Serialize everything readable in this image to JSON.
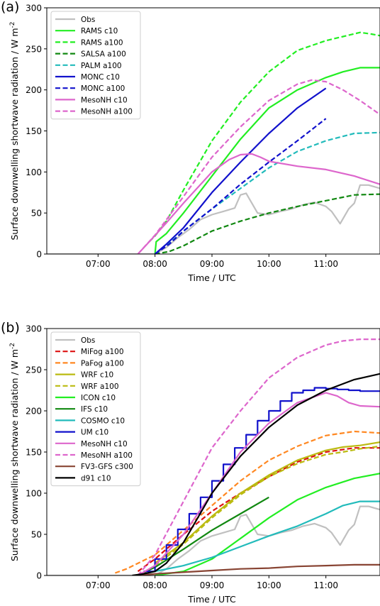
{
  "chart_data": [
    {
      "panel_label": "(a)",
      "type": "line",
      "xlabel": "Time / UTC",
      "ylabel": "Surface downwelling shortwave radiation / W m",
      "ylabel_sup": "-2",
      "xlim": [
        6.1,
        11.95
      ],
      "ylim": [
        0,
        300
      ],
      "xticks": [
        7,
        8,
        9,
        10,
        11
      ],
      "xtick_labels": [
        "07:00",
        "08:00",
        "09:00",
        "10:00",
        "11:00"
      ],
      "yticks": [
        0,
        50,
        100,
        150,
        200,
        250,
        300
      ],
      "ytick_labels": [
        "0",
        "50",
        "100",
        "150",
        "200",
        "250",
        "300"
      ],
      "legend_position": "upper-left",
      "series": [
        {
          "name": "Obs",
          "color": "#c0c0c0",
          "dash": "solid",
          "x": [
            6.0,
            7.5,
            8.0,
            8.2,
            8.4,
            8.6,
            8.8,
            9.0,
            9.2,
            9.4,
            9.5,
            9.6,
            9.8,
            10.0,
            10.2,
            10.4,
            10.6,
            10.8,
            11.0,
            11.1,
            11.25,
            11.4,
            11.5,
            11.6,
            11.75,
            11.95
          ],
          "y": [
            0,
            0,
            0,
            8,
            20,
            30,
            42,
            48,
            52,
            56,
            72,
            74,
            50,
            48,
            52,
            55,
            60,
            63,
            58,
            52,
            37,
            55,
            62,
            84,
            84,
            80
          ]
        },
        {
          "name": "RAMS c10",
          "color": "#22ee22",
          "dash": "solid",
          "x": [
            8.0,
            8.02,
            8.2,
            8.5,
            9.0,
            9.5,
            10.0,
            10.5,
            11.0,
            11.3,
            11.6,
            11.95
          ],
          "y": [
            0,
            15,
            25,
            50,
            95,
            140,
            178,
            200,
            215,
            222,
            227,
            227
          ]
        },
        {
          "name": "RAMS a100",
          "color": "#22ee22",
          "dash": "dashed",
          "x": [
            7.9,
            8.0,
            8.2,
            8.5,
            9.0,
            9.5,
            10.0,
            10.5,
            11.0,
            11.3,
            11.6,
            11.8,
            11.95
          ],
          "y": [
            15,
            22,
            40,
            78,
            138,
            185,
            222,
            248,
            260,
            265,
            270,
            268,
            266
          ]
        },
        {
          "name": "SALSA a100",
          "color": "#118811",
          "dash": "dashed",
          "x": [
            8.0,
            8.25,
            8.5,
            9.0,
            9.5,
            10.0,
            10.5,
            11.0,
            11.5,
            11.95
          ],
          "y": [
            0,
            3,
            10,
            28,
            40,
            50,
            58,
            65,
            72,
            73
          ]
        },
        {
          "name": "PALM a100",
          "color": "#22bbbb",
          "dash": "dashed",
          "x": [
            8.0,
            8.2,
            8.5,
            9.0,
            9.5,
            10.0,
            10.5,
            11.0,
            11.5,
            11.95
          ],
          "y": [
            0,
            10,
            28,
            55,
            80,
            105,
            125,
            138,
            147,
            148
          ]
        },
        {
          "name": "MONC c10",
          "color": "#1111cc",
          "dash": "solid",
          "x": [
            8.0,
            8.2,
            8.5,
            9.0,
            9.5,
            10.0,
            10.5,
            11.0
          ],
          "y": [
            0,
            12,
            32,
            75,
            112,
            147,
            178,
            202
          ]
        },
        {
          "name": "MONC a100",
          "color": "#1111cc",
          "dash": "dashed",
          "x": [
            8.0,
            8.25,
            8.5,
            9.0,
            9.5,
            10.0,
            10.5,
            11.0
          ],
          "y": [
            0,
            12,
            28,
            55,
            85,
            112,
            138,
            165
          ]
        },
        {
          "name": "MesoNH c10",
          "color": "#dd66cc",
          "dash": "solid",
          "x": [
            7.7,
            7.9,
            8.2,
            8.5,
            9.0,
            9.3,
            9.5,
            9.7,
            9.85,
            10.0,
            10.5,
            11.0,
            11.5,
            11.95
          ],
          "y": [
            0,
            15,
            38,
            62,
            100,
            115,
            121,
            122,
            118,
            113,
            107,
            103,
            95,
            85
          ]
        },
        {
          "name": "MesoNH a100",
          "color": "#dd66cc",
          "dash": "dashed",
          "x": [
            7.7,
            8.0,
            8.5,
            9.0,
            9.5,
            10.0,
            10.5,
            10.75,
            11.0,
            11.3,
            11.6,
            11.95
          ],
          "y": [
            0,
            23,
            70,
            118,
            155,
            187,
            207,
            212,
            210,
            200,
            187,
            170
          ]
        }
      ]
    },
    {
      "panel_label": "(b)",
      "type": "line",
      "xlabel": "Time / UTC",
      "ylabel": "Surface downwelling shortwave radiation / W m",
      "ylabel_sup": "-2",
      "xlim": [
        6.1,
        11.95
      ],
      "ylim": [
        0,
        300
      ],
      "xticks": [
        7,
        8,
        9,
        10,
        11
      ],
      "xtick_labels": [
        "07:00",
        "08:00",
        "09:00",
        "10:00",
        "11:00"
      ],
      "yticks": [
        0,
        50,
        100,
        150,
        200,
        250,
        300
      ],
      "ytick_labels": [
        "0",
        "50",
        "100",
        "150",
        "200",
        "250",
        "300"
      ],
      "legend_position": "upper-left",
      "series": [
        {
          "name": "Obs",
          "color": "#c0c0c0",
          "dash": "solid",
          "x": [
            6.0,
            7.5,
            8.0,
            8.2,
            8.4,
            8.6,
            8.8,
            9.0,
            9.2,
            9.4,
            9.5,
            9.6,
            9.8,
            10.0,
            10.2,
            10.4,
            10.6,
            10.8,
            11.0,
            11.1,
            11.25,
            11.4,
            11.5,
            11.6,
            11.75,
            11.95
          ],
          "y": [
            0,
            0,
            0,
            8,
            20,
            30,
            42,
            48,
            52,
            56,
            72,
            74,
            50,
            48,
            52,
            55,
            60,
            63,
            58,
            52,
            37,
            55,
            62,
            84,
            84,
            80
          ]
        },
        {
          "name": "MiFog a100",
          "color": "#dd1111",
          "dash": "dashed",
          "x": [
            7.7,
            8.0,
            8.5,
            9.0,
            9.5,
            10.0,
            10.5,
            11.0,
            11.5,
            11.95
          ],
          "y": [
            5,
            20,
            50,
            78,
            100,
            120,
            138,
            150,
            155,
            155
          ]
        },
        {
          "name": "PaFog a100",
          "color": "#ff8822",
          "dash": "dashed",
          "x": [
            7.3,
            7.5,
            8.0,
            8.5,
            9.0,
            9.5,
            10.0,
            10.5,
            11.0,
            11.5,
            11.95
          ],
          "y": [
            3,
            8,
            25,
            55,
            85,
            115,
            140,
            157,
            170,
            175,
            173
          ]
        },
        {
          "name": "WRF c10",
          "color": "#bbbb11",
          "dash": "solid",
          "x": [
            8.0,
            8.5,
            9.0,
            9.5,
            10.0,
            10.5,
            11.0,
            11.3,
            11.6,
            11.95
          ],
          "y": [
            15,
            40,
            72,
            100,
            122,
            140,
            152,
            156,
            158,
            162
          ]
        },
        {
          "name": "WRF a100",
          "color": "#bbbb11",
          "dash": "dashed",
          "x": [
            8.0,
            8.5,
            9.0,
            9.5,
            10.0,
            10.5,
            11.0,
            11.3,
            11.6,
            11.95
          ],
          "y": [
            12,
            38,
            70,
            98,
            120,
            136,
            147,
            150,
            154,
            157
          ]
        },
        {
          "name": "ICON c10",
          "color": "#22ee22",
          "dash": "solid",
          "x": [
            8.0,
            8.5,
            9.0,
            9.5,
            10.0,
            10.5,
            11.0,
            11.5,
            11.95
          ],
          "y": [
            0,
            5,
            20,
            45,
            70,
            92,
            107,
            118,
            124
          ]
        },
        {
          "name": "IFS c10",
          "color": "#118811",
          "dash": "solid",
          "x": [
            7.7,
            8.0,
            8.5,
            9.0,
            9.5,
            10.0
          ],
          "y": [
            0,
            10,
            32,
            55,
            75,
            95
          ]
        },
        {
          "name": "COSMO c10",
          "color": "#22bbbb",
          "dash": "solid",
          "x": [
            7.7,
            8.0,
            8.5,
            9.0,
            9.5,
            10.0,
            10.5,
            11.0,
            11.3,
            11.6,
            11.95
          ],
          "y": [
            0,
            5,
            12,
            22,
            35,
            48,
            60,
            75,
            85,
            90,
            90
          ]
        },
        {
          "name": "UM c10",
          "color": "#1111cc",
          "dash": "solid",
          "step": true,
          "x": [
            7.8,
            8.0,
            8.2,
            8.4,
            8.6,
            8.8,
            9.0,
            9.2,
            9.4,
            9.6,
            9.8,
            10.0,
            10.2,
            10.4,
            10.6,
            10.8,
            11.0,
            11.2,
            11.4,
            11.6,
            11.8,
            11.95
          ],
          "y": [
            5,
            20,
            37,
            56,
            75,
            95,
            115,
            135,
            155,
            171,
            188,
            200,
            212,
            222,
            225,
            228,
            227,
            226,
            225,
            224,
            224,
            224
          ]
        },
        {
          "name": "MesoNH c10",
          "color": "#dd66cc",
          "dash": "solid",
          "x": [
            7.7,
            8.0,
            8.5,
            9.0,
            9.5,
            10.0,
            10.5,
            11.0,
            11.2,
            11.4,
            11.6,
            11.95
          ],
          "y": [
            0,
            12,
            50,
            100,
            150,
            185,
            210,
            222,
            218,
            210,
            206,
            205
          ]
        },
        {
          "name": "MesoNH a100",
          "color": "#dd66cc",
          "dash": "dashed",
          "x": [
            7.7,
            8.0,
            8.5,
            9.0,
            9.5,
            10.0,
            10.5,
            11.0,
            11.3,
            11.6,
            11.8,
            11.95
          ],
          "y": [
            0,
            25,
            90,
            155,
            200,
            240,
            265,
            280,
            285,
            287,
            287,
            287
          ]
        },
        {
          "name": "FV3-GFS c300",
          "color": "#884433",
          "dash": "solid",
          "x": [
            7.7,
            8.0,
            8.5,
            9.0,
            9.5,
            10.0,
            10.5,
            11.0,
            11.5,
            11.95
          ],
          "y": [
            0,
            2,
            4,
            6,
            8,
            9,
            11,
            12,
            13,
            13
          ]
        },
        {
          "name": "d91 c10",
          "color": "#000000",
          "dash": "solid",
          "x": [
            7.6,
            7.8,
            8.0,
            8.2,
            8.5,
            9.0,
            9.5,
            10.0,
            10.5,
            11.0,
            11.5,
            11.95
          ],
          "y": [
            0,
            2,
            5,
            15,
            40,
            100,
            145,
            180,
            207,
            225,
            238,
            245
          ]
        }
      ]
    }
  ]
}
